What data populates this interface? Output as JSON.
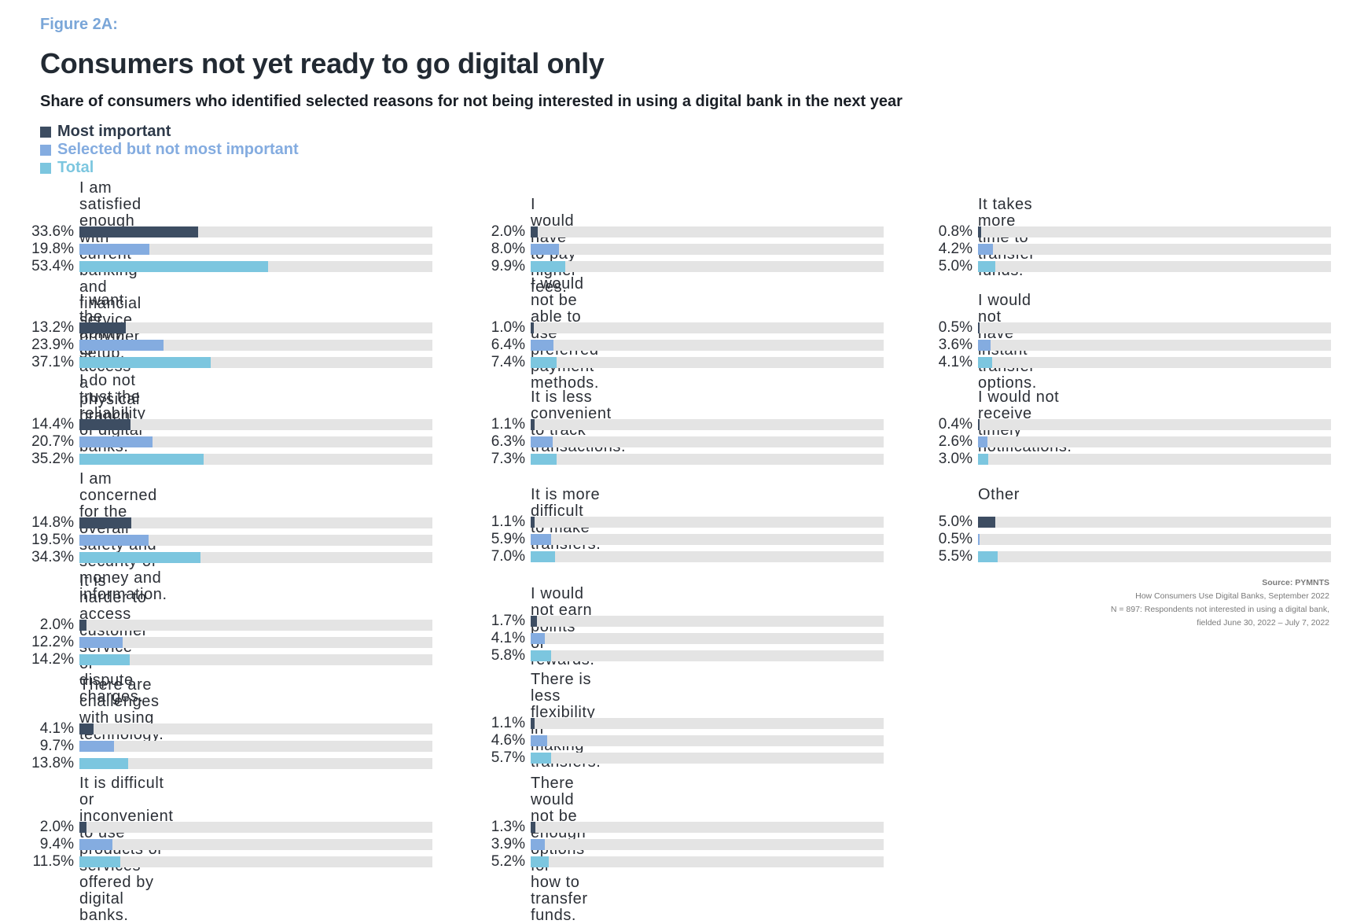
{
  "figure_label": "Figure 2A:",
  "title": "Consumers not yet ready to go digital only",
  "subtitle": "Share of consumers who identified selected reasons for not being interested in using a digital bank in the next year",
  "legend": [
    {
      "label": "Most important",
      "color": "#3d4d62"
    },
    {
      "label": "Selected but not most important",
      "color": "#84ace0"
    },
    {
      "label": "Total",
      "color": "#7cc6df"
    }
  ],
  "source": {
    "head": "Source: PYMNTS",
    "lines": [
      "How Consumers Use Digital Banks, September 2022",
      "N = 897: Respondents not interested in using a digital bank,",
      "fielded June 30, 2022 – July 7, 2022"
    ]
  },
  "chart_data": {
    "type": "bar",
    "orientation": "horizontal",
    "unit": "%",
    "xlim": [
      0,
      100
    ],
    "series_names": [
      "Most important",
      "Selected but not most important",
      "Total"
    ],
    "columns": [
      [
        {
          "label": [
            "I am satisfied enough with current banking",
            "and financial service provider setup."
          ],
          "values": [
            33.6,
            19.8,
            53.4
          ],
          "display": [
            "33.6%",
            "19.8%",
            "53.4%"
          ]
        },
        {
          "label": [
            "I want the ability to access a physical branch"
          ],
          "values": [
            13.2,
            23.9,
            37.1
          ],
          "display": [
            "13.2%",
            "23.9%",
            "37.1%"
          ]
        },
        {
          "label": [
            "I do not trust the reliability of digital",
            "banks."
          ],
          "values": [
            14.4,
            20.7,
            35.2
          ],
          "display": [
            "14.4%",
            "20.7%",
            "35.2%"
          ]
        },
        {
          "label": [
            "I am concerned for the overall safety and",
            "security of money and information."
          ],
          "values": [
            14.8,
            19.5,
            34.3
          ],
          "display": [
            "14.8%",
            "19.5%",
            "34.3%"
          ]
        },
        {
          "label": [
            "It is harder to access customer service or",
            "dispute charges."
          ],
          "values": [
            2.0,
            12.2,
            14.2
          ],
          "display": [
            "2.0%",
            "12.2%",
            "14.2%"
          ]
        },
        {
          "label": [
            "There are challenges with using",
            "technology."
          ],
          "values": [
            4.1,
            9.7,
            13.8
          ],
          "display": [
            "4.1%",
            "9.7%",
            "13.8%"
          ]
        },
        {
          "label": [
            "It is difficult or inconvenient to use",
            "products or services offered by digital banks."
          ],
          "values": [
            2.0,
            9.4,
            11.5
          ],
          "display": [
            "2.0%",
            "9.4%",
            "11.5%"
          ]
        }
      ],
      [
        {
          "label": [
            "I would have to pay higher fees."
          ],
          "values": [
            2.0,
            8.0,
            9.9
          ],
          "display": [
            "2.0%",
            "8.0%",
            "9.9%"
          ]
        },
        {
          "label": [
            "I would not be able to use preferred",
            "payment methods."
          ],
          "values": [
            1.0,
            6.4,
            7.4
          ],
          "display": [
            "1.0%",
            "6.4%",
            "7.4%"
          ]
        },
        {
          "label": [
            "It is less convenient to track transactions."
          ],
          "values": [
            1.1,
            6.3,
            7.3
          ],
          "display": [
            "1.1%",
            "6.3%",
            "7.3%"
          ]
        },
        {
          "label": [
            "It is more difficult to make transfers."
          ],
          "values": [
            1.1,
            5.9,
            7.0
          ],
          "display": [
            "1.1%",
            "5.9%",
            "7.0%"
          ]
        },
        {
          "label": [
            "I would not earn points or rewards."
          ],
          "values": [
            1.7,
            4.1,
            5.8
          ],
          "display": [
            "1.7%",
            "4.1%",
            "5.8%"
          ]
        },
        {
          "label": [
            "There is less flexibility in making",
            "transfers."
          ],
          "values": [
            1.1,
            4.6,
            5.7
          ],
          "display": [
            "1.1%",
            "4.6%",
            "5.7%"
          ]
        },
        {
          "label": [
            "There would not be enough options for",
            "how to transfer funds."
          ],
          "values": [
            1.3,
            3.9,
            5.2
          ],
          "display": [
            "1.3%",
            "3.9%",
            "5.2%"
          ]
        }
      ],
      [
        {
          "label": [
            "It takes more time to transfer funds."
          ],
          "values": [
            0.8,
            4.2,
            5.0
          ],
          "display": [
            "0.8%",
            "4.2%",
            "5.0%"
          ]
        },
        {
          "label": [
            "I would not have instant transfer options."
          ],
          "values": [
            0.5,
            3.6,
            4.1
          ],
          "display": [
            "0.5%",
            "3.6%",
            "4.1%"
          ]
        },
        {
          "label": [
            "I would not receive timely notifications."
          ],
          "values": [
            0.4,
            2.6,
            3.0
          ],
          "display": [
            "0.4%",
            "2.6%",
            "3.0%"
          ]
        },
        {
          "label": [
            "Other"
          ],
          "values": [
            5.0,
            0.5,
            5.5
          ],
          "display": [
            "5.0%",
            "0.5%",
            "5.5%"
          ]
        }
      ]
    ]
  }
}
